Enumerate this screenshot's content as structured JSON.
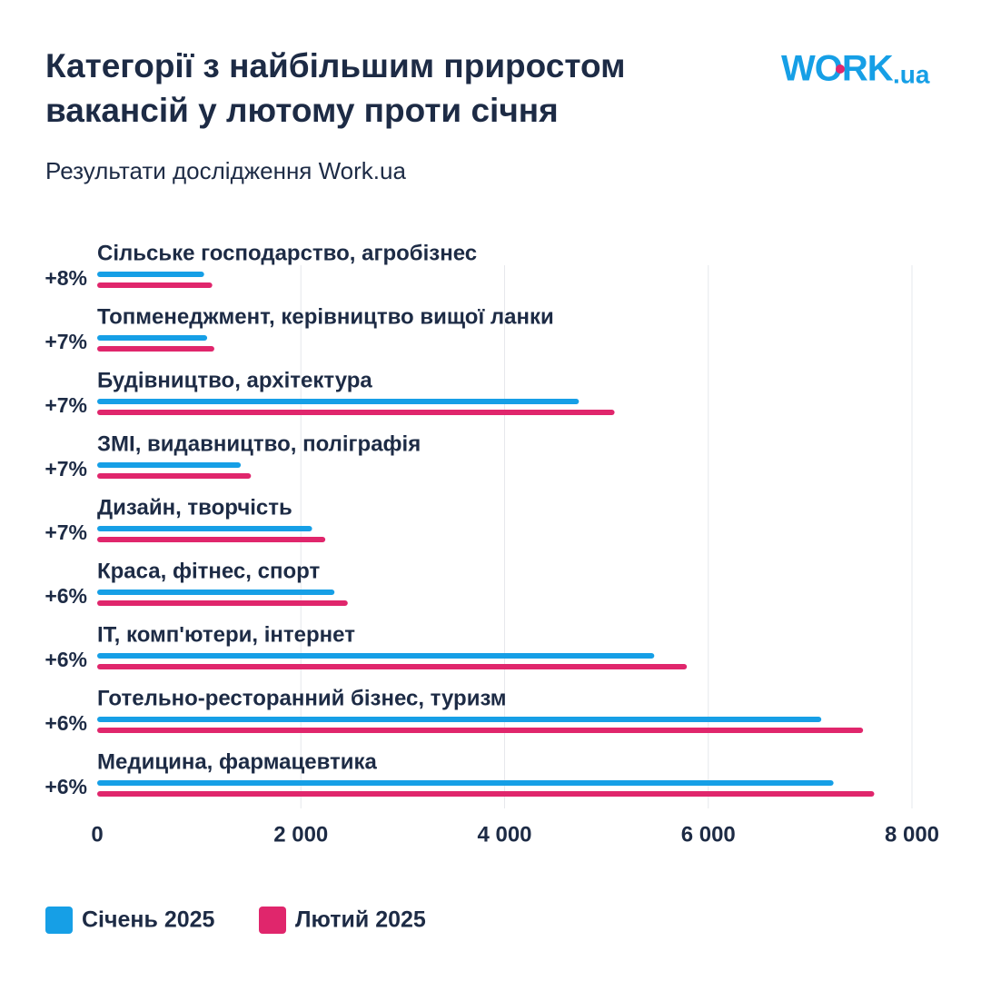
{
  "chart_data": {
    "type": "hbar",
    "title_lines": [
      "Категорії з найбільшим приростом",
      "вакансій у лютому проти січня"
    ],
    "subtitle": "Результати дослідження Work.ua",
    "logo": {
      "main": "WORK",
      "suffix": ".ua"
    },
    "categories": [
      "Сільське господарство, агробізнес",
      "Топменеджмент, керівництво вищої ланки",
      "Будівництво, архітектура",
      "ЗМІ, видавництво, поліграфія",
      "Дизайн, творчість",
      "Краса, фітнес, спорт",
      "IT, комп'ютери, інтернет",
      "Готельно-ресторанний бізнес, туризм",
      "Медицина, фармацевтика"
    ],
    "growth_labels": [
      "+8%",
      "+7%",
      "+7%",
      "+7%",
      "+7%",
      "+6%",
      "+6%",
      "+6%",
      "+6%"
    ],
    "series": [
      {
        "name": "Січень 2025",
        "color": "#169fe6",
        "values": [
          1050,
          1080,
          4730,
          1410,
          2110,
          2330,
          5470,
          7110,
          7230
        ]
      },
      {
        "name": "Лютий 2025",
        "color": "#e0266c",
        "values": [
          1130,
          1150,
          5080,
          1510,
          2240,
          2460,
          5790,
          7520,
          7630
        ]
      }
    ],
    "xlim": [
      0,
      8000
    ],
    "xticks": [
      0,
      {
        "value": 2000,
        "label": "2 000"
      },
      {
        "value": 4000,
        "label": "4 000"
      },
      {
        "value": 6000,
        "label": "6 000"
      },
      {
        "value": 8000,
        "label": "8 000"
      }
    ],
    "grid": true
  }
}
